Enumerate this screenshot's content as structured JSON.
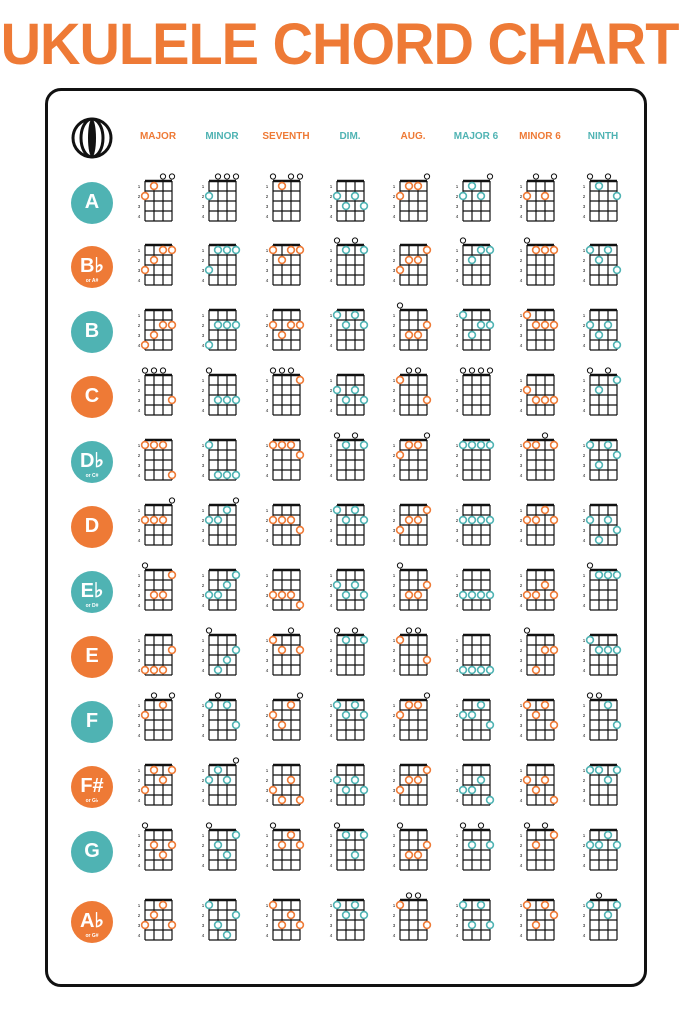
{
  "title": "UKULELE CHORD CHART",
  "colors": {
    "orange": "#ee7a36",
    "teal": "#4fb3b3",
    "line": "#111111"
  },
  "logo_icon": "ukulele-body-icon",
  "columns": [
    {
      "label": "MAJOR",
      "color": "orange"
    },
    {
      "label": "MINOR",
      "color": "teal"
    },
    {
      "label": "SEVENTH",
      "color": "orange"
    },
    {
      "label": "DIM.",
      "color": "teal"
    },
    {
      "label": "AUG.",
      "color": "orange"
    },
    {
      "label": "MAJOR 6",
      "color": "teal"
    },
    {
      "label": "MINOR 6",
      "color": "orange"
    },
    {
      "label": "NINTH",
      "color": "teal"
    }
  ],
  "rows": [
    {
      "root": "A",
      "alt": "",
      "color": "teal",
      "chords": [
        [
          2,
          1,
          0,
          0
        ],
        [
          2,
          0,
          0,
          0
        ],
        [
          0,
          1,
          0,
          0
        ],
        [
          2,
          3,
          2,
          3
        ],
        [
          2,
          1,
          1,
          0
        ],
        [
          2,
          1,
          2,
          0
        ],
        [
          2,
          0,
          2,
          0
        ],
        [
          0,
          1,
          0,
          2
        ]
      ]
    },
    {
      "root": "B♭",
      "alt": "or A#",
      "color": "orange",
      "chords": [
        [
          3,
          2,
          1,
          1
        ],
        [
          3,
          1,
          1,
          1
        ],
        [
          1,
          2,
          1,
          1
        ],
        [
          0,
          1,
          0,
          1
        ],
        [
          3,
          2,
          2,
          1
        ],
        [
          0,
          2,
          1,
          1
        ],
        [
          0,
          1,
          1,
          1
        ],
        [
          1,
          2,
          1,
          3
        ]
      ]
    },
    {
      "root": "B",
      "alt": "",
      "color": "teal",
      "chords": [
        [
          4,
          3,
          2,
          2
        ],
        [
          4,
          2,
          2,
          2
        ],
        [
          2,
          3,
          2,
          2
        ],
        [
          1,
          2,
          1,
          2
        ],
        [
          0,
          3,
          3,
          2
        ],
        [
          1,
          3,
          2,
          2
        ],
        [
          1,
          2,
          2,
          2
        ],
        [
          2,
          3,
          2,
          4
        ]
      ]
    },
    {
      "root": "C",
      "alt": "",
      "color": "orange",
      "chords": [
        [
          0,
          0,
          0,
          3
        ],
        [
          0,
          3,
          3,
          3
        ],
        [
          0,
          0,
          0,
          1
        ],
        [
          2,
          3,
          2,
          3
        ],
        [
          1,
          0,
          0,
          3
        ],
        [
          0,
          0,
          0,
          0
        ],
        [
          2,
          3,
          3,
          3
        ],
        [
          0,
          2,
          0,
          1
        ]
      ]
    },
    {
      "root": "D♭",
      "alt": "or C#",
      "color": "teal",
      "chords": [
        [
          1,
          1,
          1,
          4
        ],
        [
          1,
          4,
          4,
          4
        ],
        [
          1,
          1,
          1,
          2
        ],
        [
          0,
          1,
          0,
          1
        ],
        [
          2,
          1,
          1,
          0
        ],
        [
          1,
          1,
          1,
          1
        ],
        [
          1,
          1,
          0,
          1
        ],
        [
          1,
          3,
          1,
          2
        ]
      ]
    },
    {
      "root": "D",
      "alt": "",
      "color": "orange",
      "chords": [
        [
          2,
          2,
          2,
          0
        ],
        [
          2,
          2,
          1,
          0
        ],
        [
          2,
          2,
          2,
          3
        ],
        [
          1,
          2,
          1,
          2
        ],
        [
          3,
          2,
          2,
          1
        ],
        [
          2,
          2,
          2,
          2
        ],
        [
          2,
          2,
          1,
          2
        ],
        [
          2,
          4,
          2,
          3
        ]
      ]
    },
    {
      "root": "E♭",
      "alt": "or D#",
      "color": "teal",
      "chords": [
        [
          0,
          3,
          3,
          1
        ],
        [
          3,
          3,
          2,
          1
        ],
        [
          3,
          3,
          3,
          4
        ],
        [
          2,
          3,
          2,
          3
        ],
        [
          0,
          3,
          3,
          2
        ],
        [
          3,
          3,
          3,
          3
        ],
        [
          3,
          3,
          2,
          3
        ],
        [
          0,
          1,
          1,
          1
        ]
      ]
    },
    {
      "root": "E",
      "alt": "",
      "color": "orange",
      "chords": [
        [
          4,
          4,
          4,
          2
        ],
        [
          0,
          4,
          3,
          2
        ],
        [
          1,
          2,
          0,
          2
        ],
        [
          0,
          1,
          0,
          1
        ],
        [
          1,
          0,
          0,
          3
        ],
        [
          4,
          4,
          4,
          4
        ],
        [
          0,
          4,
          2,
          2
        ],
        [
          1,
          2,
          2,
          2
        ]
      ]
    },
    {
      "root": "F",
      "alt": "",
      "color": "teal",
      "chords": [
        [
          2,
          0,
          1,
          0
        ],
        [
          1,
          0,
          1,
          3
        ],
        [
          2,
          3,
          1,
          0
        ],
        [
          1,
          2,
          1,
          2
        ],
        [
          2,
          1,
          1,
          0
        ],
        [
          2,
          2,
          1,
          3
        ],
        [
          1,
          2,
          1,
          3
        ],
        [
          0,
          0,
          1,
          3
        ]
      ]
    },
    {
      "root": "F#",
      "alt": "or G♭",
      "color": "orange",
      "chords": [
        [
          3,
          1,
          2,
          1
        ],
        [
          2,
          1,
          2,
          0
        ],
        [
          3,
          4,
          2,
          4
        ],
        [
          2,
          3,
          2,
          3
        ],
        [
          3,
          2,
          2,
          1
        ],
        [
          3,
          3,
          2,
          4
        ],
        [
          2,
          3,
          2,
          4
        ],
        [
          1,
          1,
          2,
          1
        ]
      ]
    },
    {
      "root": "G",
      "alt": "",
      "color": "teal",
      "chords": [
        [
          0,
          2,
          3,
          2
        ],
        [
          0,
          2,
          3,
          1
        ],
        [
          0,
          2,
          1,
          2
        ],
        [
          0,
          1,
          3,
          1
        ],
        [
          0,
          3,
          3,
          2
        ],
        [
          0,
          2,
          0,
          2
        ],
        [
          0,
          2,
          0,
          1
        ],
        [
          2,
          2,
          1,
          2
        ]
      ]
    },
    {
      "root": "A♭",
      "alt": "or G#",
      "color": "orange",
      "chords": [
        [
          3,
          2,
          1,
          3
        ],
        [
          1,
          3,
          4,
          2
        ],
        [
          1,
          3,
          2,
          3
        ],
        [
          1,
          2,
          1,
          2
        ],
        [
          1,
          0,
          0,
          3
        ],
        [
          1,
          3,
          1,
          3
        ],
        [
          1,
          3,
          1,
          2
        ],
        [
          1,
          0,
          2,
          1
        ]
      ]
    }
  ]
}
